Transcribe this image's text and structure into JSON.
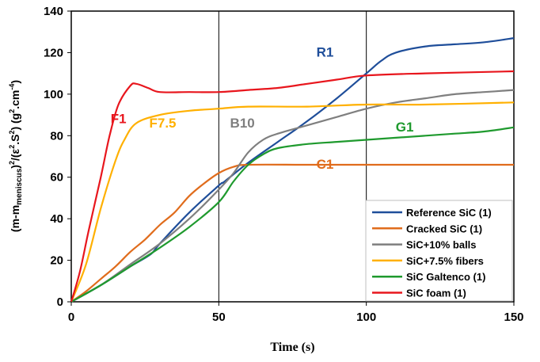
{
  "chart_data": {
    "type": "line",
    "xlabel": "Time (s)",
    "ylabel": {
      "p1": "(m-m",
      "sub": "meniscus",
      "p2": ")",
      "sup1": "2",
      "p3": "/(ε",
      "sup2": "2",
      "p4": ".S",
      "sup3": "2",
      "p5": ") (g",
      "sup4": "2",
      "p6": ".cm",
      "sup5": "-4",
      "p7": ")"
    },
    "xlim": [
      0,
      150
    ],
    "ylim": [
      0,
      140
    ],
    "xticks": [
      "0",
      "50",
      "100",
      "150"
    ],
    "yticks": [
      "0",
      "20",
      "40",
      "60",
      "80",
      "100",
      "120",
      "140"
    ],
    "grid": "vertical lines at x ticks",
    "legend_position": "bottom-right",
    "series": [
      {
        "name": "Reference SiC (1)",
        "color": "#1f4e9a",
        "annotation": "R1",
        "points": [
          [
            0,
            0
          ],
          [
            10,
            8
          ],
          [
            20,
            17
          ],
          [
            27,
            23
          ],
          [
            30,
            28
          ],
          [
            40,
            43
          ],
          [
            50,
            56
          ],
          [
            52,
            58
          ],
          [
            60,
            67
          ],
          [
            70,
            77
          ],
          [
            80,
            87
          ],
          [
            90,
            98
          ],
          [
            100,
            110
          ],
          [
            105,
            116
          ],
          [
            110,
            120
          ],
          [
            120,
            123
          ],
          [
            130,
            124
          ],
          [
            140,
            125
          ],
          [
            150,
            127
          ]
        ]
      },
      {
        "name": "Cracked SiC (1)",
        "color": "#e06c1c",
        "annotation": "C1",
        "points": [
          [
            0,
            0
          ],
          [
            5,
            5
          ],
          [
            10,
            11
          ],
          [
            15,
            17
          ],
          [
            20,
            24
          ],
          [
            25,
            30
          ],
          [
            30,
            37
          ],
          [
            35,
            43
          ],
          [
            40,
            51
          ],
          [
            45,
            57
          ],
          [
            50,
            62
          ],
          [
            55,
            65
          ],
          [
            60,
            66
          ],
          [
            80,
            66
          ],
          [
            100,
            66
          ],
          [
            120,
            66
          ],
          [
            150,
            66
          ]
        ]
      },
      {
        "name": "SiC+10% balls",
        "color": "#7f7f7f",
        "annotation": "B10",
        "points": [
          [
            0,
            0
          ],
          [
            10,
            8
          ],
          [
            20,
            18
          ],
          [
            30,
            28
          ],
          [
            40,
            40
          ],
          [
            50,
            54
          ],
          [
            55,
            62
          ],
          [
            60,
            72
          ],
          [
            65,
            78
          ],
          [
            70,
            81
          ],
          [
            80,
            85
          ],
          [
            90,
            89
          ],
          [
            100,
            93
          ],
          [
            110,
            96
          ],
          [
            120,
            98
          ],
          [
            130,
            100
          ],
          [
            140,
            101
          ],
          [
            150,
            102
          ]
        ]
      },
      {
        "name": "SiC+7.5% fibers",
        "color": "#ffb000",
        "annotation": "F7.5",
        "points": [
          [
            0,
            0
          ],
          [
            5,
            18
          ],
          [
            10,
            45
          ],
          [
            15,
            68
          ],
          [
            18,
            78
          ],
          [
            22,
            86
          ],
          [
            30,
            90
          ],
          [
            40,
            92
          ],
          [
            50,
            93
          ],
          [
            60,
            94
          ],
          [
            80,
            94
          ],
          [
            100,
            95
          ],
          [
            120,
            95
          ],
          [
            150,
            96
          ]
        ]
      },
      {
        "name": "SiC Galtenco (1)",
        "color": "#1f9a2e",
        "annotation": "G1",
        "points": [
          [
            0,
            0
          ],
          [
            10,
            8
          ],
          [
            20,
            17
          ],
          [
            30,
            26
          ],
          [
            40,
            36
          ],
          [
            50,
            48
          ],
          [
            55,
            58
          ],
          [
            60,
            66
          ],
          [
            65,
            71
          ],
          [
            70,
            74
          ],
          [
            80,
            76
          ],
          [
            90,
            77
          ],
          [
            100,
            78
          ],
          [
            110,
            79
          ],
          [
            120,
            80
          ],
          [
            130,
            81
          ],
          [
            140,
            82
          ],
          [
            150,
            84
          ]
        ]
      },
      {
        "name": "SiC foam (1)",
        "color": "#e8161d",
        "annotation": "F1",
        "points": [
          [
            0,
            0
          ],
          [
            3,
            15
          ],
          [
            6,
            35
          ],
          [
            10,
            60
          ],
          [
            13,
            80
          ],
          [
            16,
            95
          ],
          [
            20,
            104
          ],
          [
            22,
            105
          ],
          [
            26,
            103
          ],
          [
            30,
            101
          ],
          [
            40,
            101
          ],
          [
            50,
            101
          ],
          [
            60,
            102
          ],
          [
            70,
            103
          ],
          [
            80,
            105
          ],
          [
            90,
            107
          ],
          [
            100,
            109
          ],
          [
            120,
            110
          ],
          [
            150,
            111
          ]
        ]
      }
    ]
  }
}
